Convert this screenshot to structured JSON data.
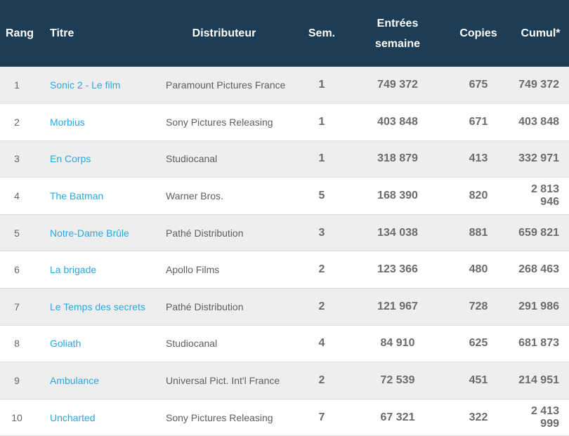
{
  "headers": {
    "rank": "Rang",
    "title": "Titre",
    "distributor": "Distributeur",
    "weeks": "Sem.",
    "weekly_admissions_line1": "Entrées",
    "weekly_admissions_line2": "semaine",
    "copies": "Copies",
    "cumulative": "Cumul*"
  },
  "rows": [
    {
      "rank": "1",
      "title": "Sonic 2 - Le film",
      "distributor": "Paramount Pictures France",
      "weeks": "1",
      "admissions": "749 372",
      "copies": "675",
      "cumul": "749 372"
    },
    {
      "rank": "2",
      "title": "Morbius",
      "distributor": "Sony Pictures Releasing",
      "weeks": "1",
      "admissions": "403 848",
      "copies": "671",
      "cumul": "403 848"
    },
    {
      "rank": "3",
      "title": "En Corps",
      "distributor": "Studiocanal",
      "weeks": "1",
      "admissions": "318 879",
      "copies": "413",
      "cumul": "332 971"
    },
    {
      "rank": "4",
      "title": "The Batman",
      "distributor": "Warner Bros.",
      "weeks": "5",
      "admissions": "168 390",
      "copies": "820",
      "cumul": "2 813 946"
    },
    {
      "rank": "5",
      "title": "Notre-Dame Brûle",
      "distributor": "Pathé Distribution",
      "weeks": "3",
      "admissions": "134 038",
      "copies": "881",
      "cumul": "659 821"
    },
    {
      "rank": "6",
      "title": "La brigade",
      "distributor": "Apollo Films",
      "weeks": "2",
      "admissions": "123 366",
      "copies": "480",
      "cumul": "268 463"
    },
    {
      "rank": "7",
      "title": "Le Temps des secrets",
      "distributor": "Pathé Distribution",
      "weeks": "2",
      "admissions": "121 967",
      "copies": "728",
      "cumul": "291 986"
    },
    {
      "rank": "8",
      "title": "Goliath",
      "distributor": "Studiocanal",
      "weeks": "4",
      "admissions": "84 910",
      "copies": "625",
      "cumul": "681 873"
    },
    {
      "rank": "9",
      "title": "Ambulance",
      "distributor": "Universal Pict. Int'l France",
      "weeks": "2",
      "admissions": "72 539",
      "copies": "451",
      "cumul": "214 951"
    },
    {
      "rank": "10",
      "title": "Uncharted",
      "distributor": "Sony Pictures Releasing",
      "weeks": "7",
      "admissions": "67 321",
      "copies": "322",
      "cumul": "2 413 999"
    }
  ],
  "colors": {
    "header_bg": "#1d3c55",
    "link": "#29a8e0",
    "row_alt": "#eeeeee"
  }
}
